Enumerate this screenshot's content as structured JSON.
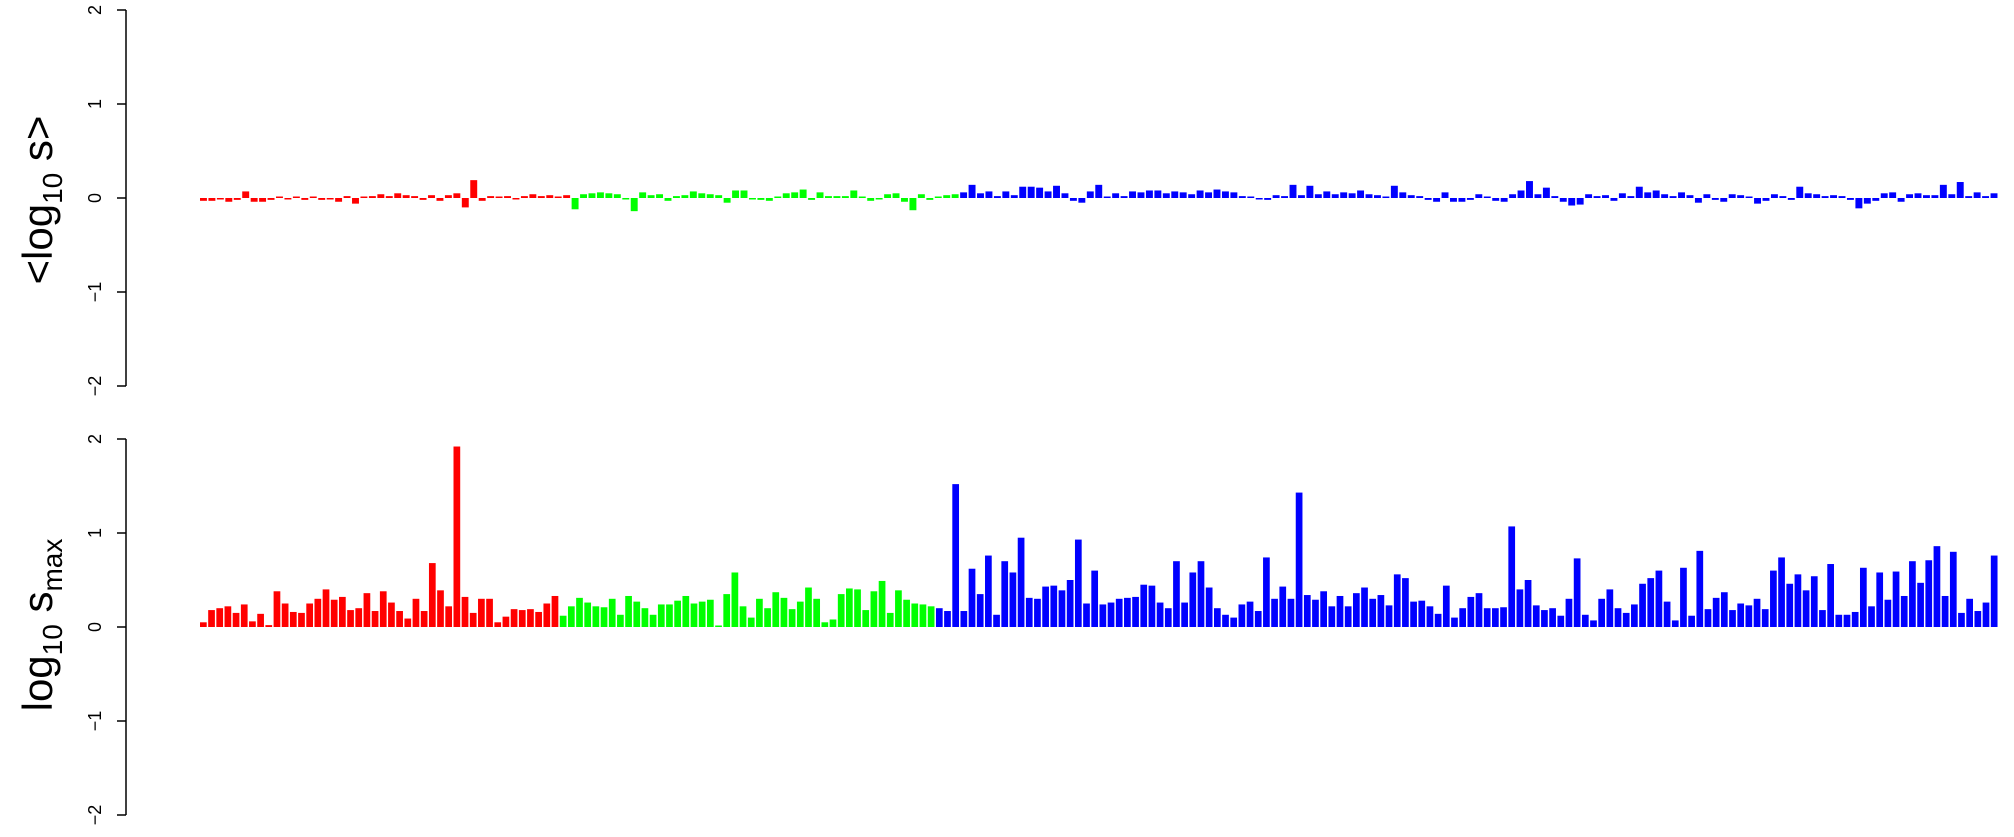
{
  "colors": {
    "group1": "#FF0000",
    "group2": "#00FF00",
    "group3": "#0000FF"
  },
  "chart_data": [
    {
      "type": "bar",
      "panel": "top",
      "ylabel": {
        "prefix": "<log",
        "sub": "10",
        "suffix": " s>"
      },
      "ylim": [
        -2,
        2
      ],
      "yticks": [
        "−2",
        "−1",
        "0",
        "1",
        "2"
      ],
      "grid": false,
      "legend": "none",
      "series": [
        {
          "group": "group1",
          "values": [
            -0.03,
            -0.03,
            -0.01,
            -0.04,
            -0.02,
            0.07,
            -0.04,
            -0.04,
            -0.02,
            0.01,
            -0.01,
            0.01,
            -0.02,
            0.01,
            -0.02,
            -0.01,
            -0.04,
            0.02,
            -0.06,
            0.01,
            0.02,
            0.04,
            0.02,
            0.05,
            0.03,
            0.02,
            -0.02,
            0.03,
            -0.03,
            0.03,
            0.05,
            -0.1,
            0.19,
            -0.03,
            0.02,
            0.01,
            0.02,
            -0.01,
            0.02,
            0.04,
            0.02,
            0.03,
            0.01,
            0.03
          ]
        },
        {
          "group": "group2",
          "values": [
            -0.12,
            0.04,
            0.05,
            0.06,
            0.05,
            0.04,
            -0.01,
            -0.14,
            0.06,
            0.03,
            0.04,
            -0.03,
            0.02,
            0.03,
            0.07,
            0.05,
            0.04,
            0.03,
            -0.05,
            0.08,
            0.08,
            -0.01,
            -0.02,
            -0.03,
            0.01,
            0.05,
            0.06,
            0.09,
            -0.02,
            0.06,
            0.02,
            0.02,
            0.02,
            0.08,
            0.01,
            -0.03,
            -0.01,
            0.04,
            0.05,
            -0.04,
            -0.13,
            0.04,
            -0.02,
            0.01,
            0.03,
            0.04
          ]
        },
        {
          "group": "group3",
          "values": [
            0.06,
            0.14,
            0.05,
            0.07,
            0.02,
            0.07,
            0.03,
            0.12,
            0.12,
            0.11,
            0.07,
            0.13,
            0.05,
            -0.03,
            -0.05,
            0.07,
            0.14,
            0.01,
            0.05,
            0.02,
            0.07,
            0.06,
            0.08,
            0.08,
            0.05,
            0.07,
            0.06,
            0.04,
            0.08,
            0.06,
            0.09,
            0.07,
            0.06,
            0.02,
            0.01,
            -0.01,
            -0.02,
            0.03,
            0.02,
            0.14,
            0.03,
            0.13,
            0.04,
            0.07,
            0.04,
            0.06,
            0.05,
            0.08,
            0.04,
            0.03,
            0.01,
            0.13,
            0.06,
            0.03,
            0.02,
            -0.02,
            -0.04,
            0.06,
            -0.04,
            -0.04,
            -0.02,
            0.04,
            0.01,
            -0.03,
            -0.04,
            0.04,
            0.08,
            0.18,
            0.04,
            0.11,
            0.02,
            -0.04,
            -0.08,
            -0.07,
            0.04,
            0.02,
            0.03,
            -0.03,
            0.05,
            0.02,
            0.12,
            0.06,
            0.08,
            0.04,
            0.02,
            0.06,
            0.03,
            -0.05,
            0.04,
            -0.02,
            -0.04,
            0.04,
            0.03,
            0.01,
            -0.06,
            -0.03,
            0.04,
            0.02,
            -0.02,
            0.12,
            0.05,
            0.04,
            0.02,
            0.03,
            0.02,
            -0.02,
            -0.11,
            -0.06,
            -0.03,
            0.05,
            0.06,
            -0.04,
            0.04,
            0.05,
            0.03,
            0.03,
            0.14,
            0.04,
            0.17,
            0.02,
            0.06,
            0.02,
            0.05
          ]
        }
      ]
    },
    {
      "type": "bar",
      "panel": "bottom",
      "ylabel": {
        "prefix": "log",
        "sub": "10",
        "suffix": " s",
        "sub2": "max"
      },
      "ylim": [
        -2,
        2
      ],
      "yticks": [
        "−2",
        "−1",
        "0",
        "1",
        "2"
      ],
      "grid": false,
      "legend": "none",
      "series": [
        {
          "group": "group1",
          "values": [
            0.05,
            0.18,
            0.2,
            0.22,
            0.15,
            0.24,
            0.06,
            0.14,
            0.02,
            0.38,
            0.25,
            0.16,
            0.15,
            0.25,
            0.3,
            0.4,
            0.29,
            0.32,
            0.18,
            0.2,
            0.36,
            0.17,
            0.38,
            0.26,
            0.17,
            0.09,
            0.3,
            0.17,
            0.68,
            0.39,
            0.22,
            1.92,
            0.32,
            0.15,
            0.3,
            0.3,
            0.05,
            0.11,
            0.19,
            0.18,
            0.19,
            0.16,
            0.25,
            0.33
          ]
        },
        {
          "group": "group2",
          "values": [
            0.12,
            0.22,
            0.31,
            0.26,
            0.22,
            0.21,
            0.3,
            0.13,
            0.33,
            0.27,
            0.2,
            0.13,
            0.24,
            0.24,
            0.28,
            0.33,
            0.25,
            0.27,
            0.29,
            0.01,
            0.35,
            0.58,
            0.22,
            0.1,
            0.3,
            0.2,
            0.37,
            0.31,
            0.19,
            0.27,
            0.42,
            0.3,
            0.05,
            0.08,
            0.35,
            0.41,
            0.4,
            0.18,
            0.38,
            0.49,
            0.15,
            0.39,
            0.29,
            0.25,
            0.24,
            0.22
          ]
        },
        {
          "group": "group3",
          "values": [
            0.2,
            0.17,
            1.52,
            0.17,
            0.62,
            0.35,
            0.76,
            0.13,
            0.7,
            0.58,
            0.95,
            0.31,
            0.3,
            0.43,
            0.44,
            0.39,
            0.5,
            0.93,
            0.25,
            0.6,
            0.24,
            0.26,
            0.3,
            0.31,
            0.32,
            0.45,
            0.44,
            0.26,
            0.2,
            0.7,
            0.26,
            0.58,
            0.7,
            0.42,
            0.2,
            0.13,
            0.1,
            0.24,
            0.27,
            0.17,
            0.74,
            0.3,
            0.43,
            0.3,
            1.43,
            0.34,
            0.29,
            0.38,
            0.22,
            0.33,
            0.22,
            0.36,
            0.42,
            0.3,
            0.34,
            0.23,
            0.56,
            0.52,
            0.27,
            0.28,
            0.22,
            0.14,
            0.44,
            0.1,
            0.2,
            0.32,
            0.36,
            0.2,
            0.2,
            0.21,
            1.07,
            0.4,
            0.5,
            0.23,
            0.18,
            0.2,
            0.12,
            0.3,
            0.73,
            0.13,
            0.07,
            0.3,
            0.4,
            0.2,
            0.15,
            0.24,
            0.46,
            0.52,
            0.6,
            0.27,
            0.07,
            0.63,
            0.12,
            0.81,
            0.19,
            0.31,
            0.37,
            0.18,
            0.25,
            0.23,
            0.3,
            0.19,
            0.6,
            0.74,
            0.46,
            0.56,
            0.39,
            0.54,
            0.18,
            0.67,
            0.13,
            0.13,
            0.16,
            0.63,
            0.22,
            0.58,
            0.29,
            0.59,
            0.33,
            0.7,
            0.47,
            0.71,
            0.86,
            0.33,
            0.8,
            0.15,
            0.3,
            0.17,
            0.26,
            0.76
          ]
        }
      ]
    }
  ]
}
